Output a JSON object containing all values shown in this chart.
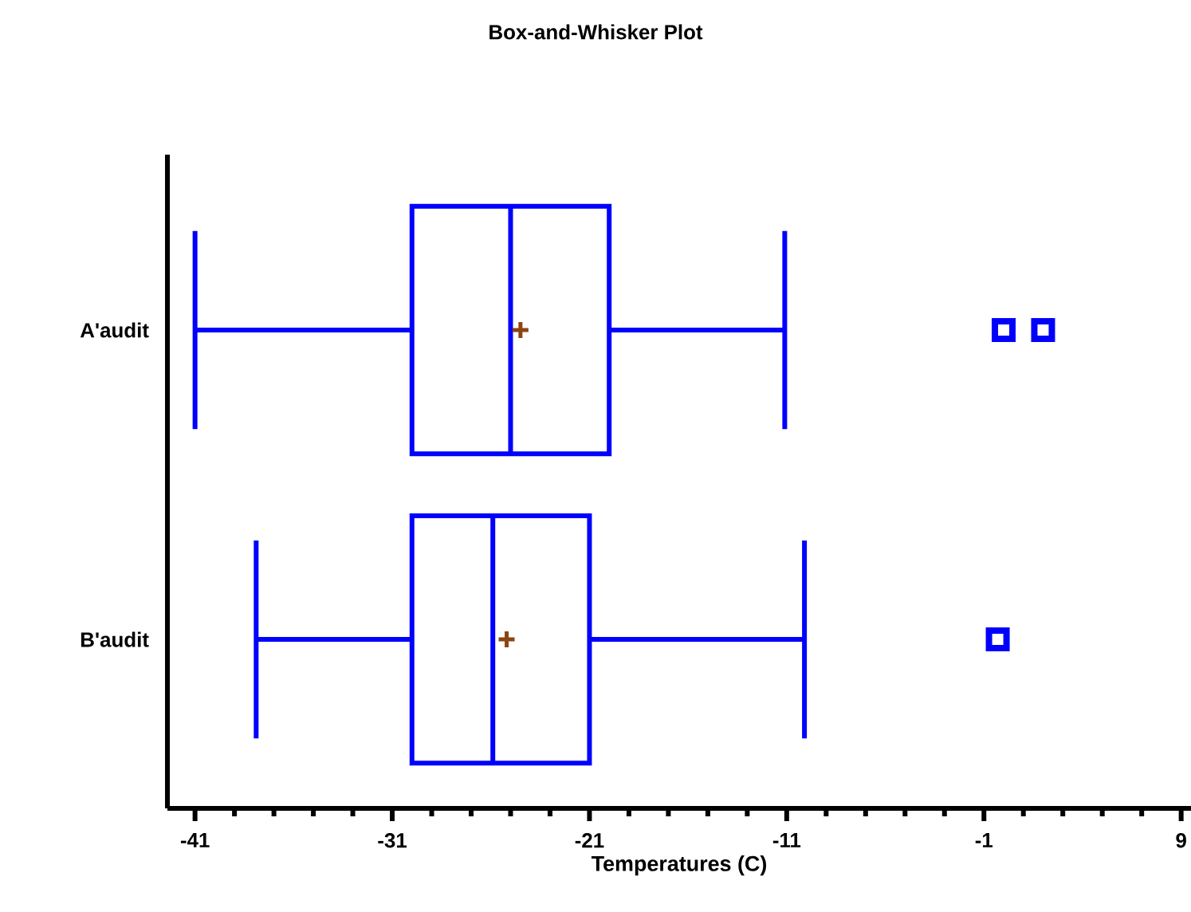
{
  "chart_data": {
    "type": "box",
    "title": "Box-and-Whisker Plot",
    "xlabel": "Temperatures (C)",
    "orientation": "horizontal",
    "categories": [
      "A'audit",
      "B'audit"
    ],
    "series": [
      {
        "color": "#0000ff",
        "boxes": [
          {
            "low": -41,
            "q1": -30,
            "median": -25,
            "q3": -20,
            "high": -11.1,
            "mean": -24.5,
            "outliers": [
              0,
              2
            ]
          },
          {
            "low": -37.9,
            "q1": -30,
            "median": -25.9,
            "q3": -21,
            "high": -10.1,
            "mean": -25.2,
            "outliers": [
              -0.3
            ]
          }
        ]
      }
    ],
    "xlim": [
      -42.4,
      9.5
    ],
    "xticks": [
      -41,
      -31,
      -21,
      -11,
      -1,
      9
    ],
    "marker": "square"
  }
}
